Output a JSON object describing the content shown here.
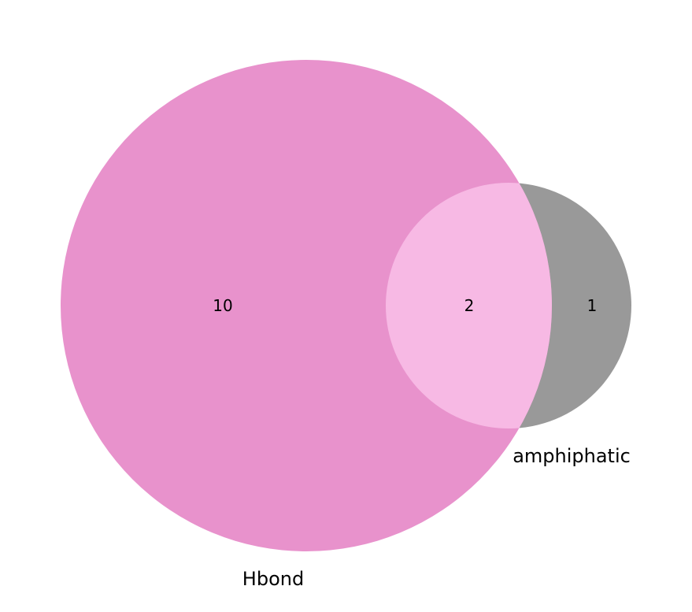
{
  "diagram": {
    "type": "venn2",
    "sets": [
      {
        "name": "Hbond",
        "color": "#e892cc"
      },
      {
        "name": "amphiphatic",
        "color": "#999999"
      }
    ],
    "regions": {
      "only_hbond": "10",
      "intersection": "2",
      "only_amphiphatic": "1"
    },
    "intersection_color": "#f7b9e4",
    "background": "#ffffff"
  }
}
